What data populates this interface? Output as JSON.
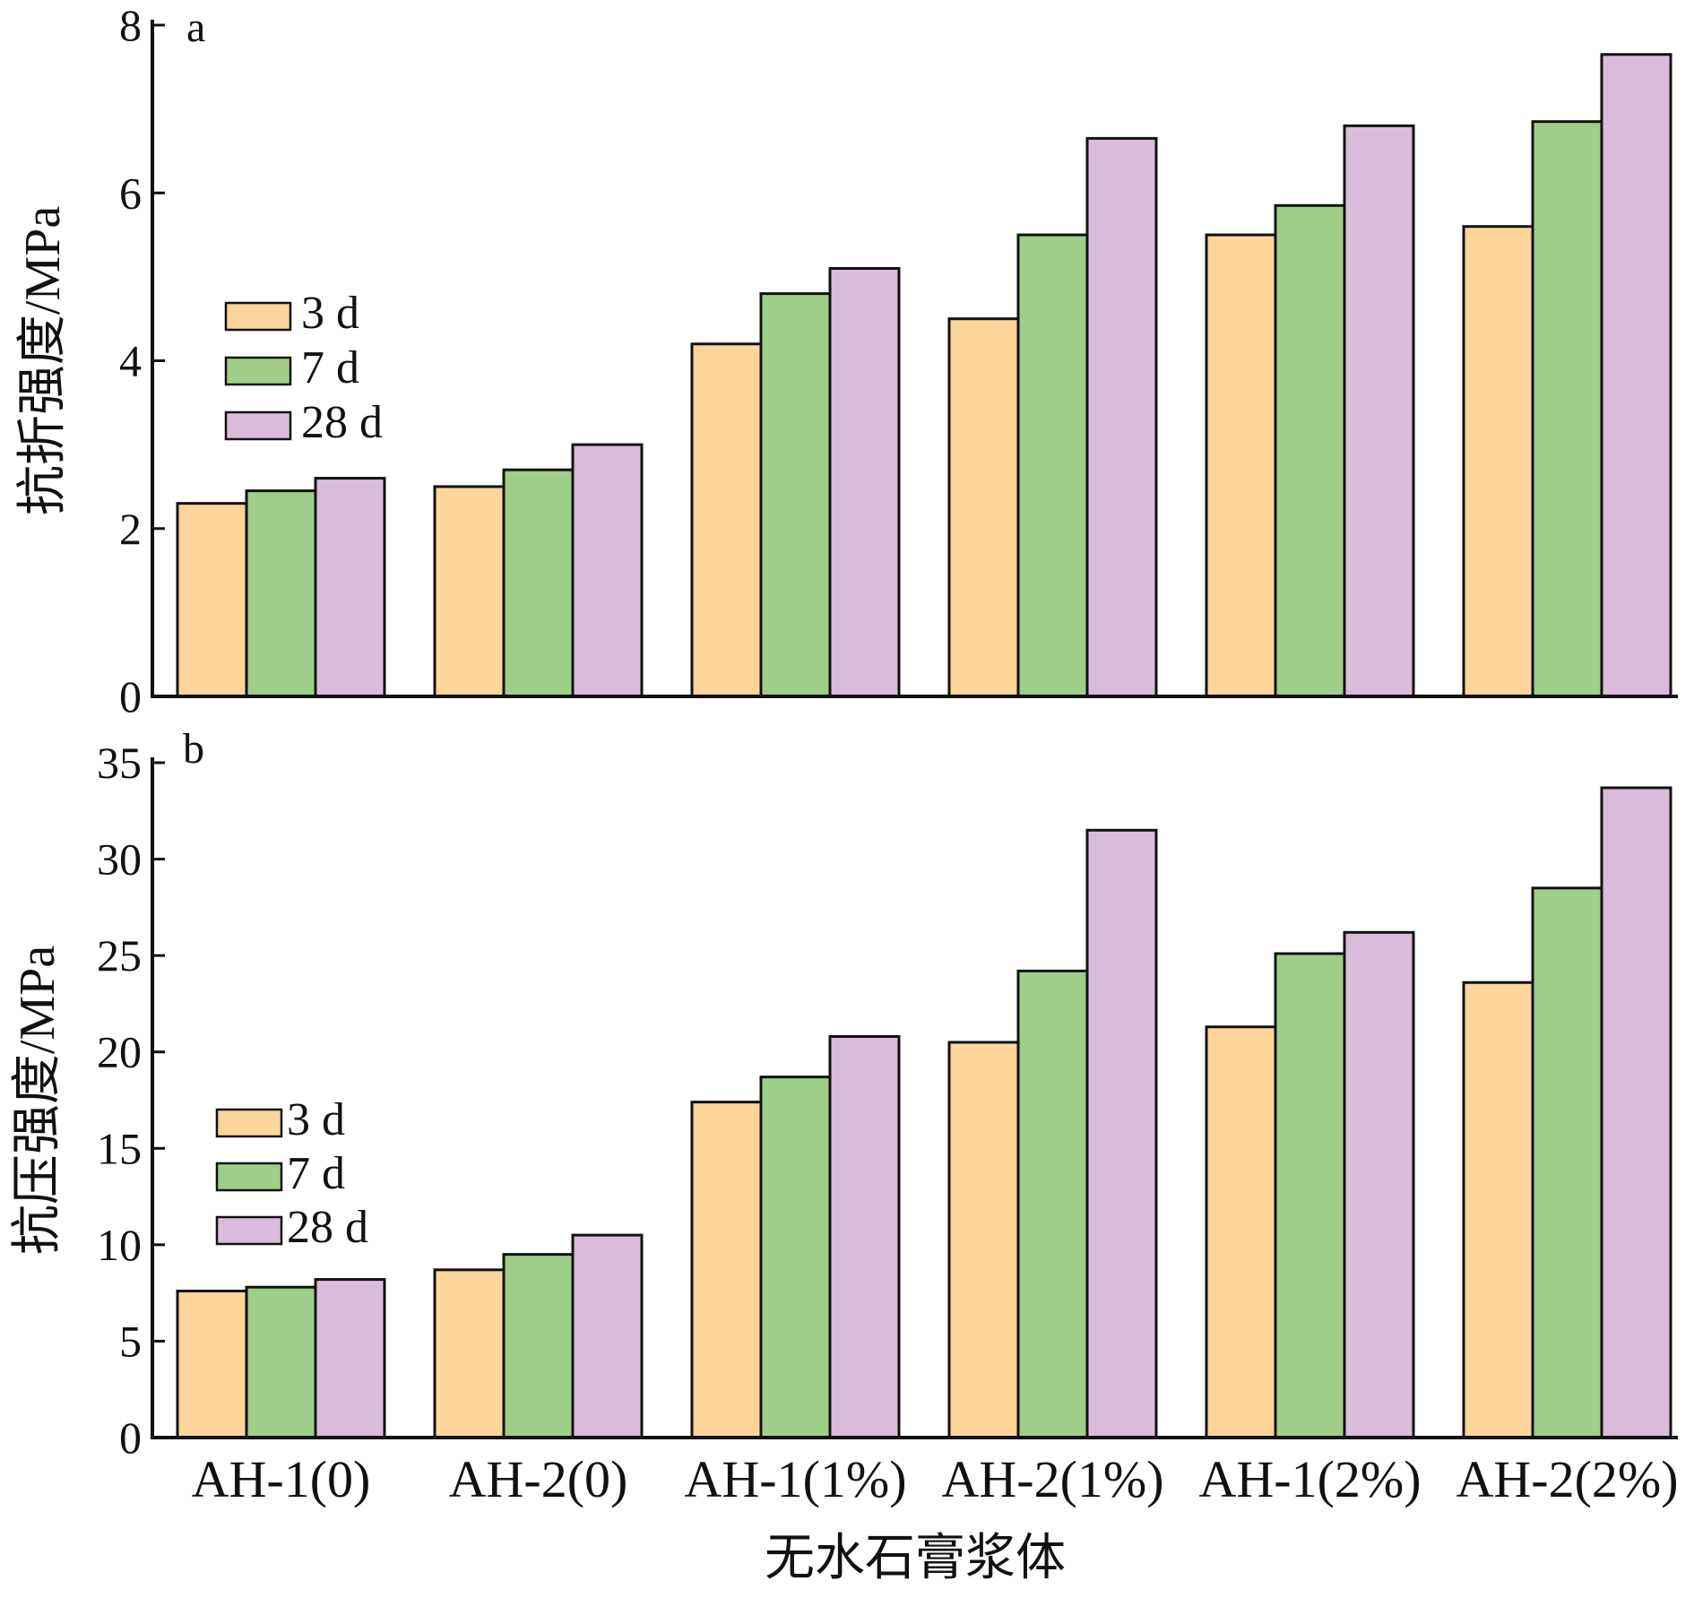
{
  "chart_data": [
    {
      "panel": "a",
      "type": "bar",
      "ylabel": "抗折强度/MPa",
      "ylim": [
        0,
        8
      ],
      "yticks": [
        0,
        2,
        4,
        6,
        8
      ],
      "categories": [
        "AH-1(0)",
        "AH-2(0)",
        "AH-1(1%)",
        "AH-2(1%)",
        "AH-1(2%)",
        "AH-2(2%)"
      ],
      "series": [
        {
          "name": "3 d",
          "color": "#fdd49a",
          "values": [
            2.3,
            2.5,
            4.2,
            4.5,
            5.5,
            5.6
          ]
        },
        {
          "name": "7 d",
          "color": "#9fce88",
          "values": [
            2.45,
            2.7,
            4.8,
            5.5,
            5.85,
            6.85
          ]
        },
        {
          "name": "28 d",
          "color": "#d9bcd9",
          "values": [
            2.6,
            3.0,
            5.1,
            6.65,
            6.8,
            7.65
          ]
        }
      ],
      "legend_position": "middle-left"
    },
    {
      "panel": "b",
      "type": "bar",
      "ylabel": "抗压强度/MPa",
      "xlabel": "无水石膏浆体",
      "ylim": [
        0,
        35
      ],
      "yticks": [
        0,
        5,
        10,
        15,
        20,
        25,
        30,
        35
      ],
      "categories": [
        "AH-1(0)",
        "AH-2(0)",
        "AH-1(1%)",
        "AH-2(1%)",
        "AH-1(2%)",
        "AH-2(2%)"
      ],
      "series": [
        {
          "name": "3 d",
          "color": "#fdd49a",
          "values": [
            7.6,
            8.7,
            17.4,
            20.5,
            21.3,
            23.6
          ]
        },
        {
          "name": "7 d",
          "color": "#9fce88",
          "values": [
            7.8,
            9.5,
            18.7,
            24.2,
            25.1,
            28.5
          ]
        },
        {
          "name": "28 d",
          "color": "#d9bcd9",
          "values": [
            8.2,
            10.5,
            20.8,
            31.5,
            26.2,
            33.7
          ]
        }
      ],
      "legend_position": "lower-left"
    }
  ]
}
